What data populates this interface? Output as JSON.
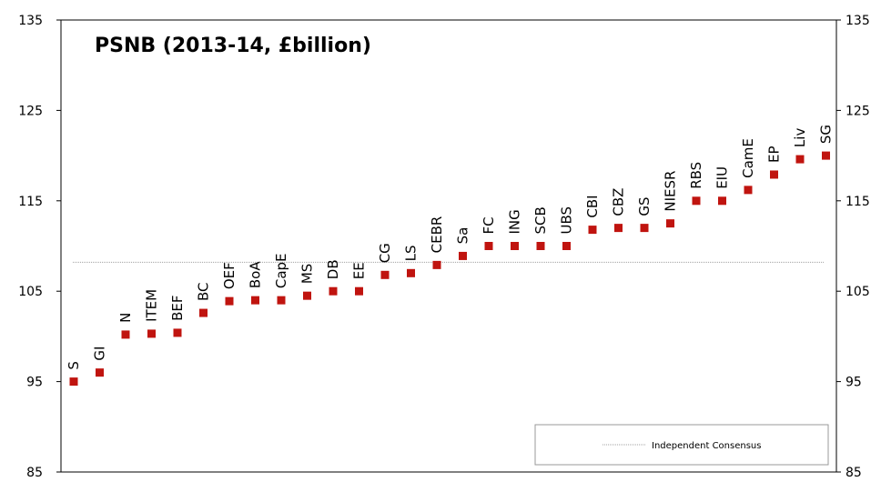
{
  "chart_data": {
    "type": "scatter",
    "title": "PSNB (2013-14, £billion)",
    "xlabel": "",
    "ylabel": "",
    "ylim": [
      85,
      135
    ],
    "yticks": [
      85,
      95,
      105,
      115,
      125,
      135
    ],
    "grid": false,
    "legend_position": "bottom-right",
    "marker_color": "#C0140F",
    "consensus_color": "#A0A0A0",
    "categories": [
      "S",
      "GI",
      "N",
      "ITEM",
      "BEF",
      "BC",
      "OEF",
      "BoA",
      "CapE",
      "MS",
      "DB",
      "EE",
      "CG",
      "LS",
      "CEBR",
      "Sa",
      "FC",
      "ING",
      "SCB",
      "UBS",
      "CBI",
      "CBZ",
      "GS",
      "NIESR",
      "RBS",
      "EIU",
      "CamE",
      "EP",
      "Liv",
      "SG"
    ],
    "values": [
      95.0,
      96.0,
      100.2,
      100.3,
      100.4,
      102.6,
      103.9,
      104.0,
      104.0,
      104.5,
      105.0,
      105.0,
      106.8,
      107.0,
      107.9,
      108.9,
      110.0,
      110.0,
      110.0,
      110.0,
      111.8,
      112.0,
      112.0,
      112.5,
      115.0,
      115.0,
      116.2,
      117.9,
      119.6,
      120.0
    ],
    "series": [
      {
        "name": "Independent Consensus",
        "type": "line",
        "value": 108.2
      }
    ]
  }
}
